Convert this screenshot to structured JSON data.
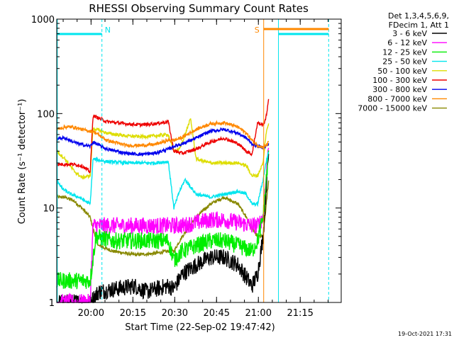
{
  "chart_data": {
    "type": "line",
    "title": "RHESSI Observing Summary Count Rates",
    "xlabel": "Start Time (22-Sep-02 19:47:42)",
    "ylabel": "Count Rate (s⁻¹ detector⁻¹)",
    "yscale": "log",
    "ylim": [
      1,
      1000
    ],
    "xlim_minutes": [
      0,
      102
    ],
    "x_ticks": [
      {
        "min": 12.3,
        "label": "20:00"
      },
      {
        "min": 27.3,
        "label": "20:15"
      },
      {
        "min": 42.3,
        "label": "20:30"
      },
      {
        "min": 57.3,
        "label": "20:45"
      },
      {
        "min": 72.3,
        "label": "21:00"
      },
      {
        "min": 87.3,
        "label": "21:15"
      }
    ],
    "y_ticks": [
      {
        "v": 1,
        "label": "1"
      },
      {
        "v": 10,
        "label": "10"
      },
      {
        "v": 100,
        "label": "100"
      },
      {
        "v": 1000,
        "label": "1000"
      }
    ],
    "legend_header": [
      "Det 1,3,4,5,6,9,",
      "FDecim 1, Att 1"
    ],
    "legend_position": "top-right outside",
    "grid": false,
    "series": [
      {
        "name": "3 - 6 keV",
        "color": "#000000",
        "x": [
          0,
          12,
          15,
          28,
          32,
          40,
          42,
          45,
          50,
          55,
          60,
          65,
          70,
          72,
          74,
          75,
          76
        ],
        "y": [
          1,
          1,
          1.3,
          1.5,
          1.3,
          1.5,
          1.4,
          2.0,
          2.5,
          3.0,
          3.0,
          2.5,
          1.5,
          2.0,
          5,
          15,
          40
        ]
      },
      {
        "name": "6 - 12 keV",
        "color": "#ff00ff",
        "x": [
          0,
          12,
          13,
          20,
          28,
          35,
          40,
          42,
          45,
          50,
          55,
          60,
          65,
          70,
          72,
          74,
          75,
          76
        ],
        "y": [
          1,
          1,
          6.5,
          6.5,
          6.5,
          6.5,
          6.5,
          6.5,
          6.5,
          7,
          7.5,
          7.5,
          7,
          6.5,
          6.5,
          8,
          20,
          50
        ]
      },
      {
        "name": "12 - 25 keV",
        "color": "#00ee00",
        "x": [
          0,
          12,
          14,
          20,
          28,
          35,
          40,
          42,
          45,
          50,
          55,
          60,
          65,
          70,
          72,
          74,
          75,
          76
        ],
        "y": [
          1.7,
          1.7,
          5.0,
          4.5,
          4.5,
          4.5,
          4.5,
          2.8,
          3.5,
          4.0,
          4.5,
          4.5,
          4.0,
          3.5,
          4.5,
          8,
          18,
          40
        ]
      },
      {
        "name": "25 - 50 keV",
        "color": "#00e5ee",
        "x": [
          0,
          2,
          5,
          8,
          12,
          13,
          18,
          25,
          30,
          35,
          40,
          42,
          44,
          46,
          50,
          55,
          60,
          65,
          68,
          70,
          72,
          74,
          75,
          76
        ],
        "y": [
          20,
          16,
          14,
          13,
          11,
          33,
          31,
          30,
          30,
          30,
          31,
          10,
          15,
          20,
          14,
          13,
          14,
          15,
          14,
          11,
          11,
          20,
          30,
          40
        ]
      },
      {
        "name": "50 - 100 keV",
        "color": "#dddd00",
        "x": [
          0,
          3,
          6,
          9,
          12,
          13,
          18,
          25,
          30,
          35,
          40,
          42,
          44,
          46,
          48,
          50,
          55,
          60,
          65,
          68,
          70,
          72,
          74,
          75,
          76
        ],
        "y": [
          40,
          33,
          25,
          21,
          22,
          70,
          62,
          58,
          57,
          58,
          60,
          40,
          42,
          60,
          88,
          33,
          30,
          30,
          30,
          28,
          22,
          22,
          30,
          60,
          80
        ]
      },
      {
        "name": "100 - 300 keV",
        "color": "#ee0000",
        "x": [
          0,
          3,
          6,
          9,
          12,
          13,
          18,
          25,
          30,
          35,
          40,
          42,
          45,
          50,
          55,
          60,
          65,
          68,
          70,
          72,
          74,
          75,
          76
        ],
        "y": [
          29,
          29,
          29,
          28,
          24,
          95,
          82,
          78,
          76,
          78,
          82,
          40,
          38,
          42,
          50,
          55,
          48,
          40,
          37,
          80,
          75,
          90,
          140
        ]
      },
      {
        "name": "300 - 800 keV",
        "color": "#0000ee",
        "x": [
          0,
          3,
          6,
          9,
          12,
          13,
          18,
          25,
          30,
          35,
          40,
          42,
          45,
          50,
          55,
          60,
          65,
          68,
          70,
          72,
          74,
          75,
          76
        ],
        "y": [
          55,
          55,
          50,
          47,
          45,
          50,
          42,
          38,
          37,
          38,
          42,
          45,
          48,
          55,
          65,
          68,
          62,
          55,
          48,
          45,
          44,
          45,
          48
        ]
      },
      {
        "name": "800 - 7000 keV",
        "color": "#ff8800",
        "x": [
          0,
          3,
          6,
          9,
          12,
          13,
          18,
          25,
          30,
          35,
          40,
          42,
          45,
          50,
          55,
          60,
          65,
          68,
          70,
          72,
          74,
          75,
          76
        ],
        "y": [
          68,
          72,
          72,
          68,
          65,
          65,
          52,
          46,
          46,
          47,
          52,
          52,
          56,
          68,
          78,
          80,
          72,
          62,
          52,
          46,
          44,
          46,
          50
        ]
      },
      {
        "name": "7000 - 15000 keV",
        "color": "#888800",
        "x": [
          0,
          3,
          6,
          9,
          12,
          13,
          15,
          20,
          28,
          35,
          40,
          42,
          45,
          50,
          55,
          60,
          65,
          68,
          70,
          72,
          74,
          75,
          76
        ],
        "y": [
          13,
          13,
          12,
          10,
          8,
          6,
          4,
          3.5,
          3.2,
          3.3,
          3.5,
          3.5,
          5,
          8,
          11,
          13,
          11,
          8,
          6,
          5,
          5,
          10,
          20
        ]
      }
    ],
    "annotations": [
      {
        "text": "N",
        "min": 16.2,
        "color": "#00e5ee"
      },
      {
        "text": "S",
        "min": 74.2,
        "color": "#ff8800"
      }
    ],
    "footer": "19-Oct-2021 17:31"
  }
}
